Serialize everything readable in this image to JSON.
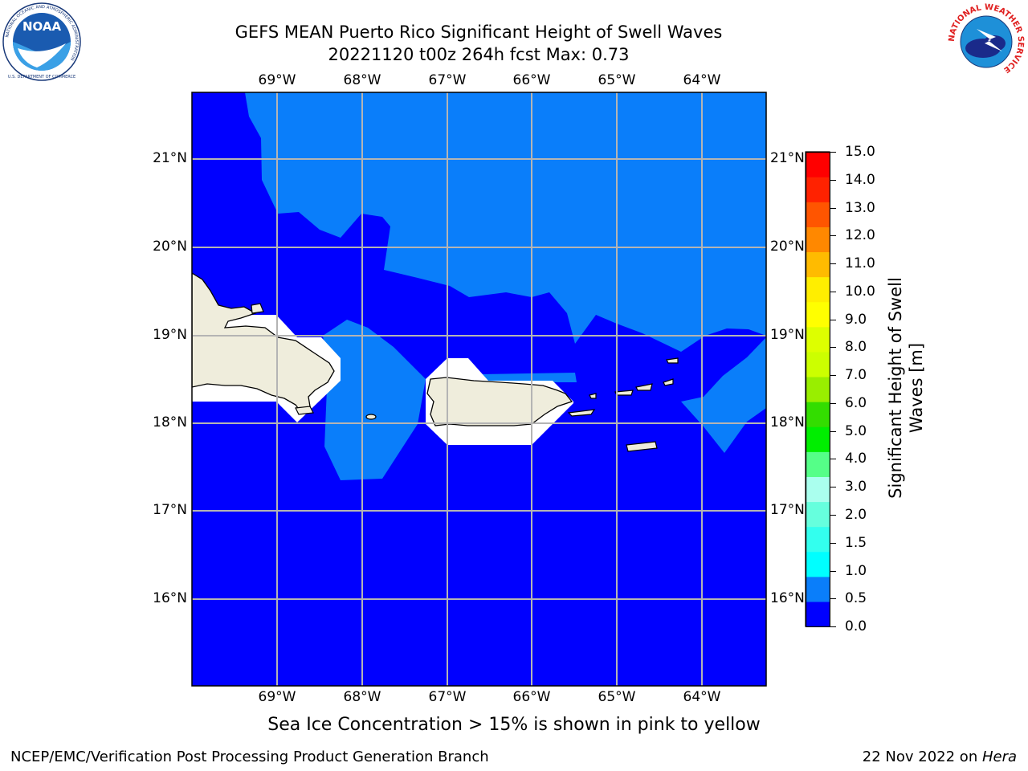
{
  "header": {
    "title_line1": "GEFS MEAN Puerto Rico Significant Height of Swell Waves",
    "title_line2": "20221120 t00z 264h fcst   Max: 0.73",
    "noaa_logo": {
      "wordmark": "NOAA",
      "ring_text": "NATIONAL OCEANIC AND ATMOSPHERIC ADMINISTRATION",
      "ring_text_bottom": "U.S. DEPARTMENT OF COMMERCE"
    },
    "nws_logo": {
      "ring_text": "NATIONAL WEATHER SERVICE"
    }
  },
  "map": {
    "lon_labels": [
      "69°W",
      "68°W",
      "67°W",
      "66°W",
      "65°W",
      "64°W"
    ],
    "lat_labels": [
      "21°N",
      "20°N",
      "19°N",
      "18°N",
      "17°N",
      "16°N"
    ],
    "colors": {
      "ocean_low": "#0000ff",
      "ocean_mid": "#0a7efa",
      "land": "#efeddc",
      "mask": "#ffffff",
      "grid": "#b4b4b4"
    }
  },
  "colorbar": {
    "label": "Significant Height of Swell Waves [m]",
    "ticks": [
      "15.0",
      "14.0",
      "13.0",
      "12.0",
      "11.0",
      "10.0",
      "9.0",
      "8.0",
      "7.0",
      "6.0",
      "5.0",
      "4.0",
      "3.0",
      "2.0",
      "1.5",
      "1.0",
      "0.5",
      "0.0"
    ],
    "colors_bottom_to_top": [
      "#0000ff",
      "#0a7efa",
      "#00ffff",
      "#33ffee",
      "#66ffdd",
      "#aaffee",
      "#55ff88",
      "#00ee00",
      "#33dd00",
      "#99ee00",
      "#ccff00",
      "#ddff00",
      "#ffff00",
      "#ffee00",
      "#ffbb00",
      "#ff8800",
      "#ff5500",
      "#ff2200",
      "#ff0000"
    ]
  },
  "caption": "Sea Ice Concentration > 15% is shown in pink to yellow",
  "footer": {
    "left": "NCEP/EMC/Verification Post Processing Product Generation Branch",
    "right_prefix": "22 Nov 2022 on ",
    "right_machine": "Hera"
  }
}
